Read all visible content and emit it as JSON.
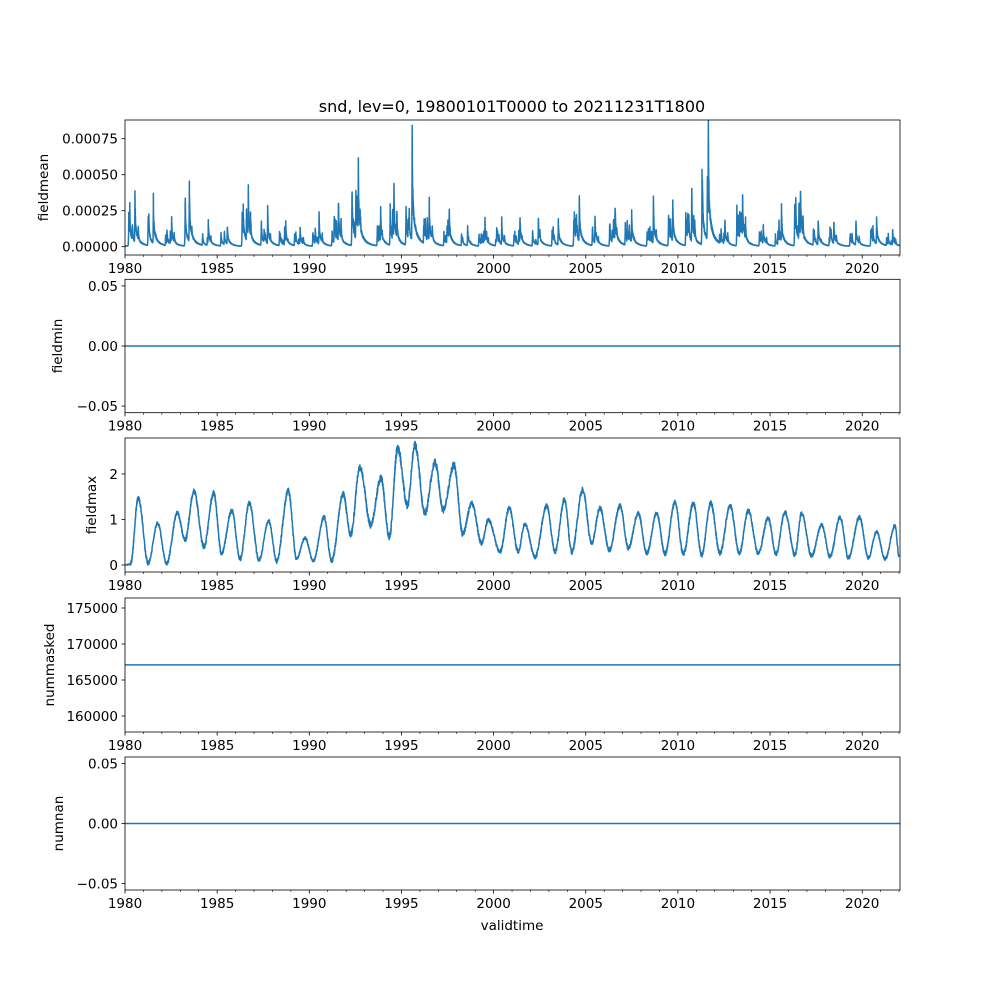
{
  "chart_data": {
    "type": "line",
    "title": "snd, lev=0, 19800101T0000 to 20211231T1800",
    "xlabel": "validtime",
    "xlim": [
      1980,
      2022.05
    ],
    "xticks": [
      1980,
      1985,
      1990,
      1995,
      2000,
      2005,
      2010,
      2015,
      2020
    ],
    "xtick_labels": [
      "1980",
      "1985",
      "1990",
      "1995",
      "2000",
      "2005",
      "2010",
      "2015",
      "2020"
    ],
    "line_color": "#1f77b4",
    "grid": false,
    "panels": [
      {
        "ylabel": "fieldmean",
        "ylim": [
          -5.76e-05,
          0.00088
        ],
        "yticks": [
          0,
          0.00025,
          0.0005,
          0.00075
        ],
        "ytick_labels": [
          "0.00000",
          "0.00025",
          "0.00050",
          "0.00075"
        ],
        "kind": "spiky",
        "baseline": 5e-06,
        "annual_peaks": [
          [
            1980.54,
            0.00036
          ],
          [
            1981.54,
            0.00033
          ],
          [
            1982.53,
            0.0002
          ],
          [
            1983.49,
            0.00044
          ],
          [
            1984.52,
            0.00019
          ],
          [
            1985.55,
            0.00016
          ],
          [
            1986.69,
            0.00042
          ],
          [
            1987.74,
            0.00026
          ],
          [
            1988.72,
            0.00017
          ],
          [
            1989.5,
            0.00014
          ],
          [
            1990.53,
            0.00023
          ],
          [
            1991.58,
            0.00035
          ],
          [
            1992.66,
            0.0006
          ],
          [
            1993.87,
            0.00027
          ],
          [
            1994.59,
            0.00046
          ],
          [
            1995.58,
            0.00082
          ],
          [
            1996.51,
            0.00033
          ],
          [
            1997.59,
            0.00027
          ],
          [
            1998.59,
            0.00014
          ],
          [
            1999.53,
            0.00019
          ],
          [
            2000.44,
            0.00018
          ],
          [
            2001.43,
            0.00022
          ],
          [
            2002.43,
            0.00022
          ],
          [
            2003.51,
            0.0002
          ],
          [
            2004.65,
            0.00035
          ],
          [
            2005.5,
            0.00022
          ],
          [
            2006.59,
            0.00033
          ],
          [
            2007.49,
            0.00025
          ],
          [
            2008.67,
            0.00033
          ],
          [
            2009.72,
            0.00032
          ],
          [
            2010.75,
            0.0004
          ],
          [
            2011.65,
            0.00084
          ],
          [
            2012.55,
            0.0002
          ],
          [
            2013.51,
            0.00037
          ],
          [
            2014.63,
            0.00016
          ],
          [
            2015.62,
            0.00027
          ],
          [
            2016.65,
            0.00046
          ],
          [
            2017.61,
            0.0002
          ],
          [
            2018.46,
            0.00019
          ],
          [
            2019.66,
            0.00018
          ],
          [
            2020.78,
            0.00022
          ],
          [
            2021.65,
            0.00012
          ]
        ]
      },
      {
        "ylabel": "fieldmin",
        "ylim": [
          -0.0555,
          0.0555
        ],
        "yticks": [
          -0.05,
          0,
          0.05
        ],
        "ytick_labels": [
          "−0.05",
          "0.00",
          "0.05"
        ],
        "kind": "constant",
        "value": 0
      },
      {
        "ylabel": "fieldmax",
        "ylim": [
          -0.154,
          2.79
        ],
        "yticks": [
          0,
          1,
          2
        ],
        "ytick_labels": [
          "0",
          "1",
          "2"
        ],
        "kind": "seasonal",
        "extremes": [
          [
            1980.0,
            0.0
          ],
          [
            1980.3,
            0.02
          ],
          [
            1980.72,
            1.47
          ],
          [
            1981.26,
            0.04
          ],
          [
            1981.77,
            0.92
          ],
          [
            1982.26,
            0.03
          ],
          [
            1982.84,
            1.14
          ],
          [
            1983.26,
            0.55
          ],
          [
            1983.74,
            1.63
          ],
          [
            1984.28,
            0.4
          ],
          [
            1984.81,
            1.58
          ],
          [
            1985.24,
            0.26
          ],
          [
            1985.8,
            1.19
          ],
          [
            1986.24,
            0.13
          ],
          [
            1986.75,
            1.36
          ],
          [
            1987.27,
            0.11
          ],
          [
            1987.8,
            0.97
          ],
          [
            1988.23,
            0.09
          ],
          [
            1988.86,
            1.63
          ],
          [
            1989.31,
            0.14
          ],
          [
            1989.77,
            0.59
          ],
          [
            1990.22,
            0.09
          ],
          [
            1990.8,
            1.05
          ],
          [
            1991.21,
            0.09
          ],
          [
            1991.84,
            1.56
          ],
          [
            1992.24,
            0.66
          ],
          [
            1992.75,
            2.15
          ],
          [
            1993.33,
            0.88
          ],
          [
            1993.89,
            1.91
          ],
          [
            1994.34,
            0.62
          ],
          [
            1994.8,
            2.57
          ],
          [
            1995.32,
            1.32
          ],
          [
            1995.73,
            2.64
          ],
          [
            1996.27,
            1.14
          ],
          [
            1996.82,
            2.26
          ],
          [
            1997.27,
            1.21
          ],
          [
            1997.85,
            2.2
          ],
          [
            1998.32,
            0.68
          ],
          [
            1998.81,
            1.36
          ],
          [
            1999.35,
            0.48
          ],
          [
            1999.71,
            0.99
          ],
          [
            2000.35,
            0.29
          ],
          [
            2000.85,
            1.25
          ],
          [
            2001.33,
            0.29
          ],
          [
            2001.7,
            0.9
          ],
          [
            2002.25,
            0.18
          ],
          [
            2002.88,
            1.3
          ],
          [
            2003.33,
            0.29
          ],
          [
            2003.84,
            1.43
          ],
          [
            2004.24,
            0.29
          ],
          [
            2004.83,
            1.65
          ],
          [
            2005.32,
            0.48
          ],
          [
            2005.77,
            1.25
          ],
          [
            2006.28,
            0.33
          ],
          [
            2006.86,
            1.3
          ],
          [
            2007.31,
            0.37
          ],
          [
            2007.85,
            1.14
          ],
          [
            2008.31,
            0.26
          ],
          [
            2008.85,
            1.14
          ],
          [
            2009.3,
            0.24
          ],
          [
            2009.84,
            1.38
          ],
          [
            2010.29,
            0.24
          ],
          [
            2010.84,
            1.36
          ],
          [
            2011.29,
            0.22
          ],
          [
            2011.78,
            1.36
          ],
          [
            2012.28,
            0.26
          ],
          [
            2012.83,
            1.3
          ],
          [
            2013.33,
            0.26
          ],
          [
            2013.82,
            1.19
          ],
          [
            2014.36,
            0.26
          ],
          [
            2014.9,
            1.03
          ],
          [
            2015.32,
            0.24
          ],
          [
            2015.81,
            1.16
          ],
          [
            2016.35,
            0.22
          ],
          [
            2016.71,
            1.14
          ],
          [
            2017.25,
            0.2
          ],
          [
            2017.8,
            0.88
          ],
          [
            2018.25,
            0.18
          ],
          [
            2018.8,
            1.05
          ],
          [
            2019.25,
            0.16
          ],
          [
            2019.85,
            1.05
          ],
          [
            2020.33,
            0.16
          ],
          [
            2020.78,
            0.73
          ],
          [
            2021.24,
            0.13
          ],
          [
            2021.78,
            0.86
          ],
          [
            2022.0,
            0.2
          ]
        ]
      },
      {
        "ylabel": "nummasked",
        "ylim": [
          157780,
          176390
        ],
        "yticks": [
          160000,
          165000,
          170000,
          175000
        ],
        "ytick_labels": [
          "160000",
          "165000",
          "170000",
          "175000"
        ],
        "kind": "constant",
        "value": 167100
      },
      {
        "ylabel": "numnan",
        "ylim": [
          -0.0555,
          0.0555
        ],
        "yticks": [
          -0.05,
          0,
          0.05
        ],
        "ytick_labels": [
          "−0.05",
          "0.00",
          "0.05"
        ],
        "kind": "constant",
        "value": 0
      }
    ]
  }
}
